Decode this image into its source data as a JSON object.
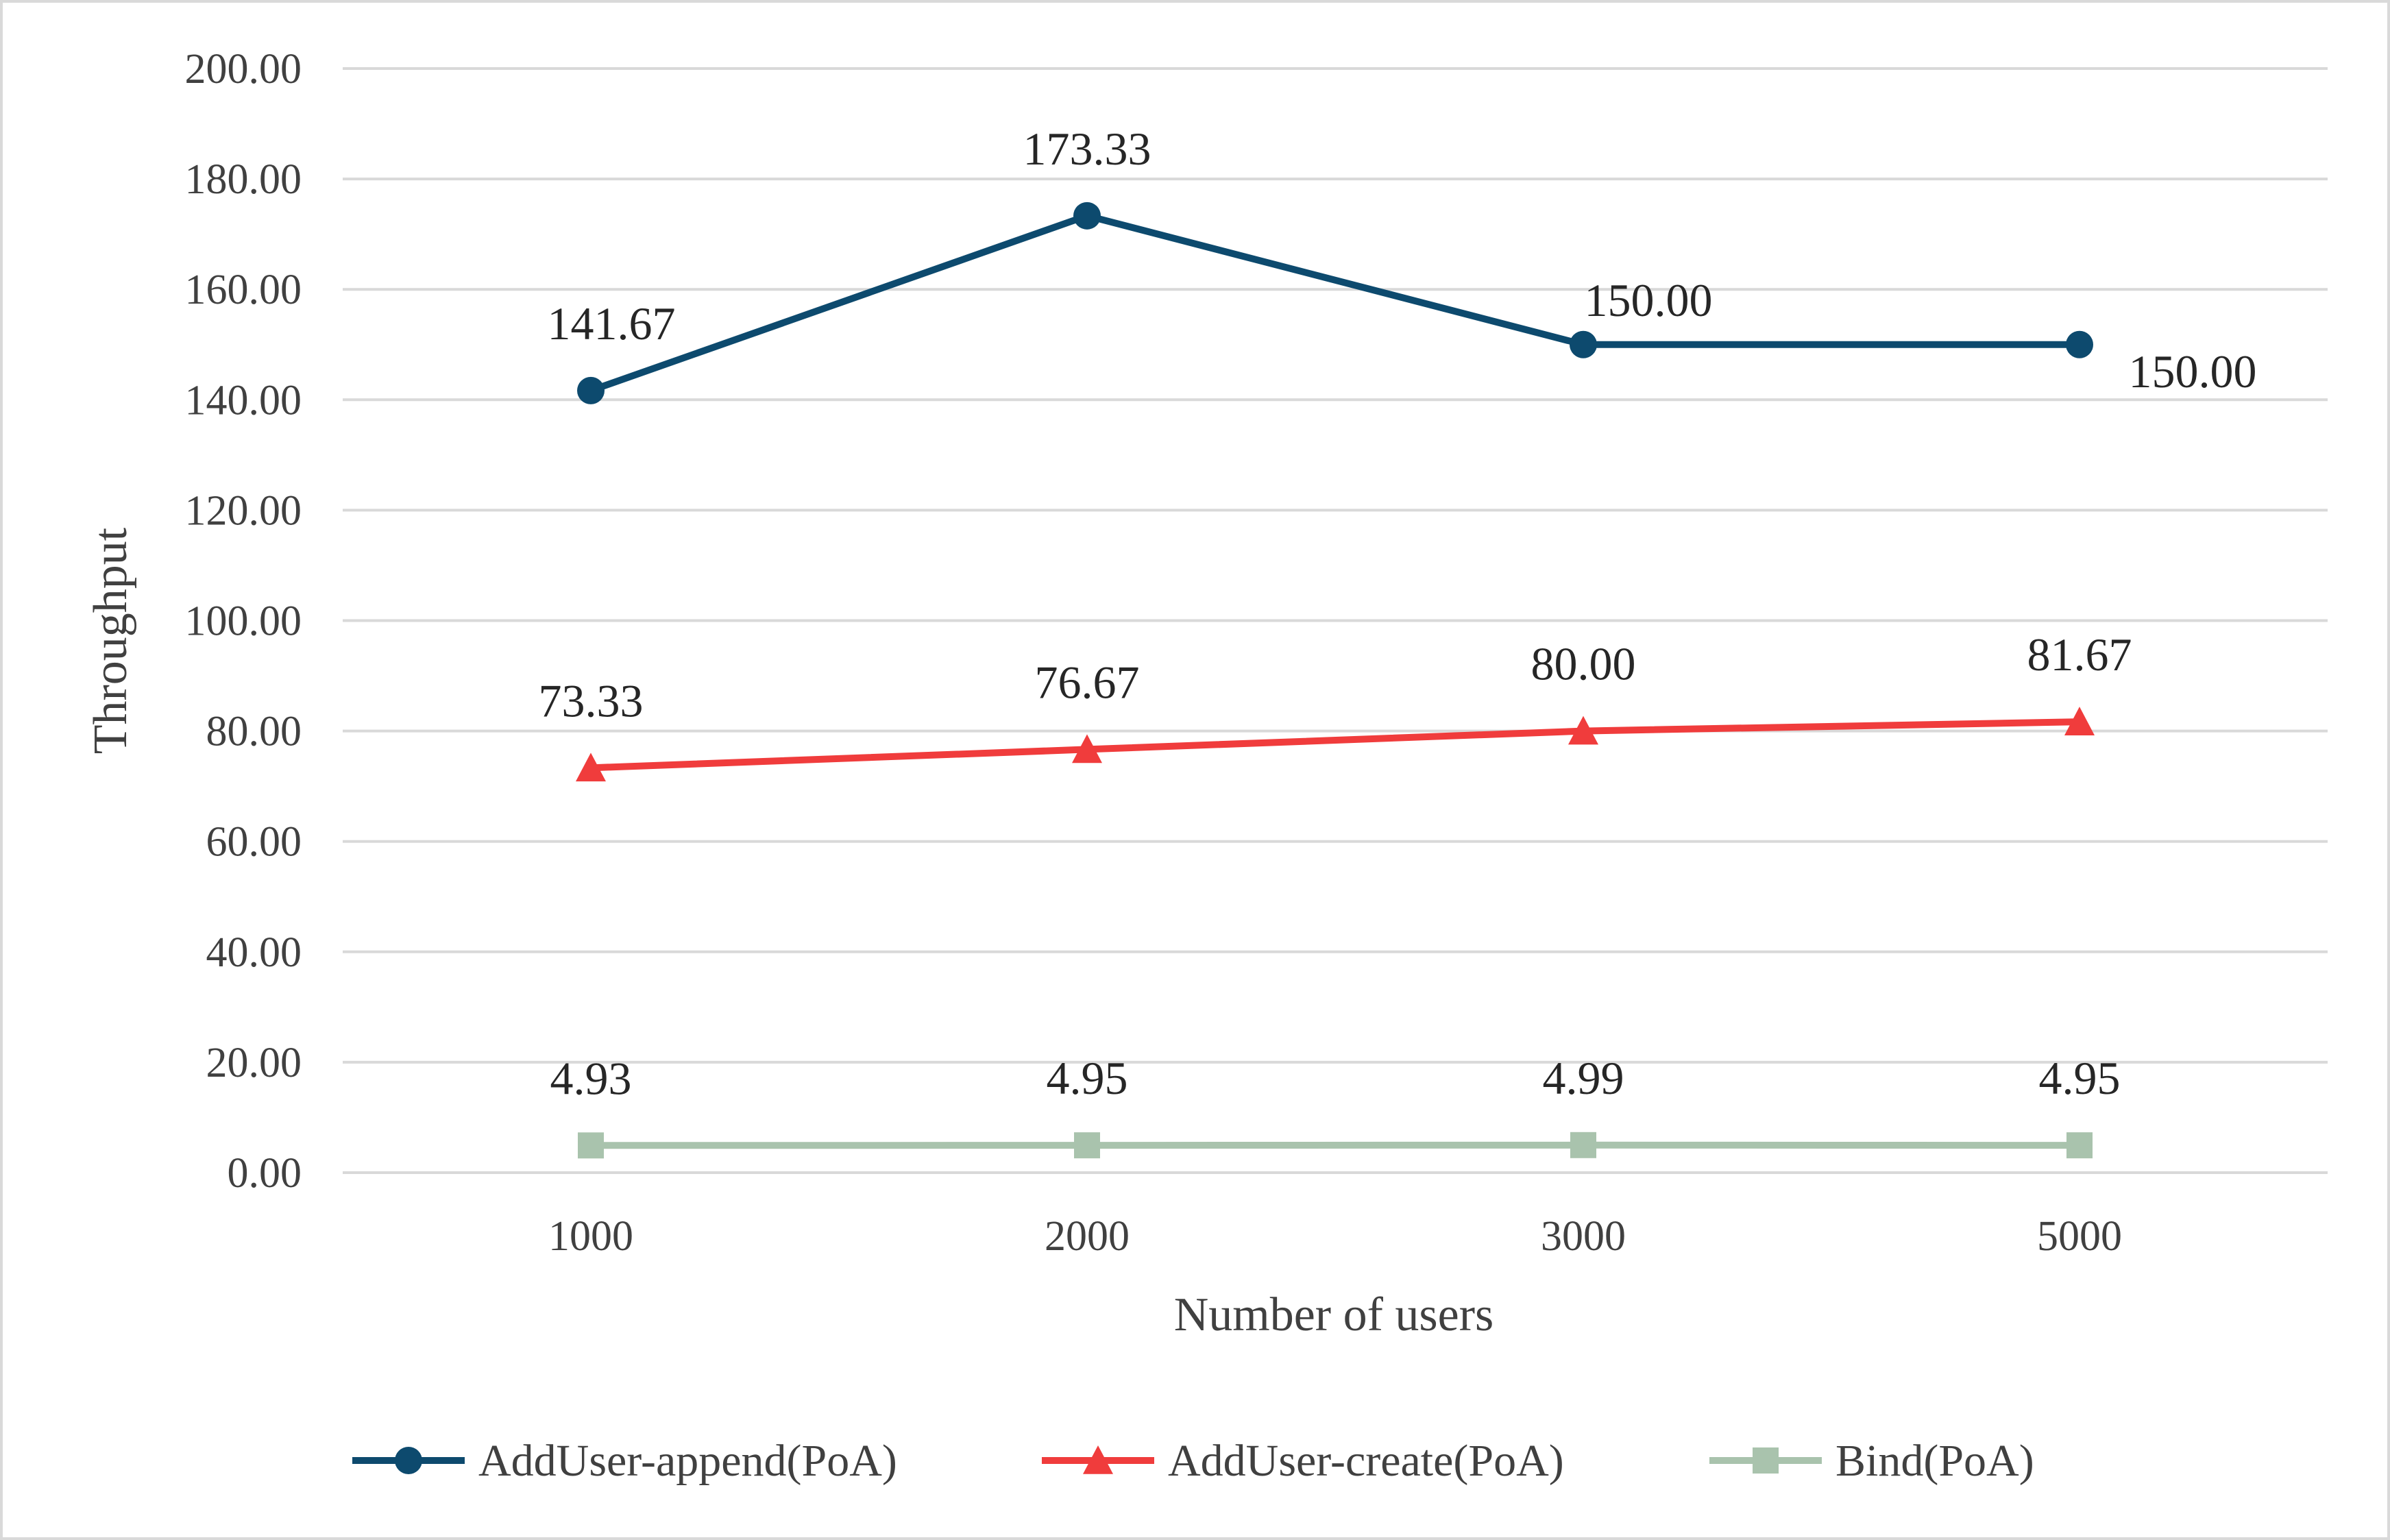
{
  "chart_data": {
    "type": "line",
    "categories": [
      "1000",
      "2000",
      "3000",
      "5000"
    ],
    "series": [
      {
        "name": "AddUser-append(PoA)",
        "values": [
          141.67,
          173.33,
          150.0,
          150.0
        ],
        "labels": [
          "141.67",
          "173.33",
          "150.00",
          "150.00"
        ],
        "color": "#0d4a6e",
        "marker": "circle"
      },
      {
        "name": "AddUser-create(PoA)",
        "values": [
          73.33,
          76.67,
          80.0,
          81.67
        ],
        "labels": [
          "73.33",
          "76.67",
          "80.00",
          "81.67"
        ],
        "color": "#f03c3c",
        "marker": "triangle"
      },
      {
        "name": "Bind(PoA)",
        "values": [
          4.93,
          4.95,
          4.99,
          4.95
        ],
        "labels": [
          "4.93",
          "4.95",
          "4.99",
          "4.95"
        ],
        "color": "#a9c3ad",
        "marker": "square"
      }
    ],
    "title": "",
    "xlabel": "Number of users",
    "ylabel": "Throughput",
    "ylim": [
      0,
      200
    ],
    "yticks": [
      "0.00",
      "20.00",
      "40.00",
      "60.00",
      "80.00",
      "100.00",
      "120.00",
      "140.00",
      "160.00",
      "180.00",
      "200.00"
    ],
    "grid": true,
    "legend": "bottom"
  }
}
